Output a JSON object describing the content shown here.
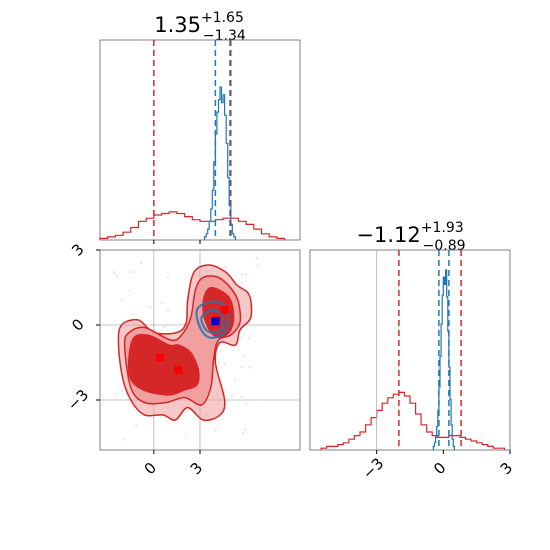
{
  "chart_data": [
    {
      "type": "histogram",
      "panel": "top-left",
      "title": {
        "main": "1.35",
        "sup": "+1.65",
        "sub": "−1.34"
      },
      "xlim": [
        -3.5,
        9.5
      ],
      "quantile_lines": {
        "red": [
          0.0,
          5.0
        ],
        "blue": [
          4.0,
          4.95
        ]
      },
      "series": [
        {
          "color": "#d62728",
          "bin_width": 0.5,
          "bins": [
            -3.25,
            -2.75,
            -2.25,
            -1.75,
            -1.25,
            -0.75,
            -0.25,
            0.25,
            0.75,
            1.25,
            1.75,
            2.25,
            2.75,
            3.25,
            3.75,
            4.25,
            4.75,
            5.25,
            5.75,
            6.25,
            6.75,
            7.25,
            7.75,
            8.25
          ],
          "heights": [
            0.01,
            0.02,
            0.03,
            0.05,
            0.08,
            0.12,
            0.14,
            0.16,
            0.17,
            0.18,
            0.17,
            0.15,
            0.13,
            0.12,
            0.12,
            0.13,
            0.14,
            0.14,
            0.12,
            0.1,
            0.07,
            0.04,
            0.02,
            0.01
          ]
        },
        {
          "color": "#1f77b4",
          "bin_width": 0.1,
          "bins": [
            3.35,
            3.45,
            3.55,
            3.65,
            3.75,
            3.85,
            3.95,
            4.05,
            4.15,
            4.25,
            4.35,
            4.45,
            4.55,
            4.65,
            4.75,
            4.85,
            4.95,
            5.05,
            5.15,
            5.25
          ],
          "heights": [
            0.02,
            0.04,
            0.07,
            0.12,
            0.2,
            0.32,
            0.5,
            0.68,
            0.82,
            0.9,
            0.98,
            0.88,
            0.93,
            0.8,
            0.62,
            0.4,
            0.22,
            0.1,
            0.04,
            0.02
          ]
        }
      ]
    },
    {
      "type": "histogram",
      "panel": "bottom-right",
      "title": {
        "main": "−1.12",
        "sup": "+1.93",
        "sub": "−0.89"
      },
      "xlim": [
        -6,
        3
      ],
      "xticks": [
        -3,
        0,
        3
      ],
      "xticklabels": [
        "−3",
        "0",
        "3"
      ],
      "quantile_lines": {
        "red": [
          -2.0,
          0.8
        ],
        "blue": [
          -0.2,
          0.25
        ]
      },
      "series": [
        {
          "color": "#d62728",
          "bin_width": 0.25,
          "bins": [
            -5.375,
            -5.125,
            -4.875,
            -4.625,
            -4.375,
            -4.125,
            -3.875,
            -3.625,
            -3.375,
            -3.125,
            -2.875,
            -2.625,
            -2.375,
            -2.125,
            -1.875,
            -1.625,
            -1.375,
            -1.125,
            -0.875,
            -0.625,
            -0.375,
            -0.125,
            0.125,
            0.375,
            0.625,
            0.875,
            1.125,
            1.375,
            1.625,
            1.875,
            2.125,
            2.375,
            2.625
          ],
          "heights": [
            0.01,
            0.02,
            0.02,
            0.03,
            0.04,
            0.06,
            0.08,
            0.1,
            0.14,
            0.18,
            0.22,
            0.26,
            0.29,
            0.31,
            0.32,
            0.3,
            0.26,
            0.2,
            0.14,
            0.1,
            0.08,
            0.07,
            0.07,
            0.08,
            0.08,
            0.07,
            0.06,
            0.05,
            0.04,
            0.03,
            0.02,
            0.01,
            0.01
          ]
        },
        {
          "color": "#1f77b4",
          "bin_width": 0.05,
          "bins": [
            -0.425,
            -0.375,
            -0.325,
            -0.275,
            -0.225,
            -0.175,
            -0.125,
            -0.075,
            -0.025,
            0.025,
            0.075,
            0.125,
            0.175,
            0.225,
            0.275,
            0.325,
            0.375,
            0.425,
            0.475
          ],
          "heights": [
            0.02,
            0.04,
            0.07,
            0.13,
            0.22,
            0.35,
            0.52,
            0.7,
            0.86,
            0.96,
            0.92,
            1.0,
            0.85,
            0.66,
            0.46,
            0.28,
            0.14,
            0.06,
            0.02
          ]
        }
      ]
    },
    {
      "type": "contour",
      "panel": "bottom-left",
      "xlim": [
        -3.5,
        9.5
      ],
      "ylim": [
        -5,
        3
      ],
      "xticks": [
        0,
        3
      ],
      "xticklabels": [
        "0",
        "3"
      ],
      "yticks": [
        -3,
        0,
        3
      ],
      "yticklabels": [
        "−3",
        "0",
        "3"
      ],
      "red_contours": {
        "outer": [
          [
            -2.3,
            -0.8
          ],
          [
            -2.1,
            0.0
          ],
          [
            -1.0,
            0.2
          ],
          [
            0.0,
            -0.3
          ],
          [
            1.5,
            -0.3
          ],
          [
            2.1,
            0.1
          ],
          [
            2.2,
            1.0
          ],
          [
            2.6,
            2.1
          ],
          [
            3.6,
            2.4
          ],
          [
            4.7,
            2.1
          ],
          [
            5.4,
            1.6
          ],
          [
            6.2,
            1.2
          ],
          [
            6.3,
            0.3
          ],
          [
            5.6,
            -0.2
          ],
          [
            5.3,
            -0.8
          ],
          [
            4.3,
            -0.7
          ],
          [
            4.0,
            -1.5
          ],
          [
            4.6,
            -3.0
          ],
          [
            4.3,
            -3.6
          ],
          [
            3.2,
            -3.8
          ],
          [
            2.2,
            -3.3
          ],
          [
            1.4,
            -3.8
          ],
          [
            0.6,
            -3.6
          ],
          [
            -0.6,
            -3.6
          ],
          [
            -1.4,
            -3.1
          ],
          [
            -2.0,
            -2.2
          ]
        ],
        "middle": [
          [
            -1.9,
            -0.8
          ],
          [
            -1.6,
            -0.3
          ],
          [
            -0.6,
            -0.1
          ],
          [
            1.1,
            -0.6
          ],
          [
            1.8,
            -0.4
          ],
          [
            2.4,
            0.3
          ],
          [
            2.7,
            1.4
          ],
          [
            3.2,
            1.9
          ],
          [
            4.2,
            1.9
          ],
          [
            5.1,
            1.4
          ],
          [
            5.5,
            0.9
          ],
          [
            5.6,
            0.1
          ],
          [
            5.0,
            -0.4
          ],
          [
            4.2,
            -0.6
          ],
          [
            3.9,
            -1.3
          ],
          [
            3.7,
            -2.5
          ],
          [
            3.1,
            -3.2
          ],
          [
            2.0,
            -2.9
          ],
          [
            0.8,
            -3.1
          ],
          [
            -0.6,
            -3.1
          ],
          [
            -1.5,
            -2.5
          ]
        ],
        "inner_top": [
          [
            3.8,
            1.5
          ],
          [
            4.9,
            1.1
          ],
          [
            5.2,
            0.3
          ],
          [
            4.9,
            -0.3
          ],
          [
            4.2,
            -0.5
          ],
          [
            3.6,
            -0.2
          ],
          [
            3.2,
            0.5
          ],
          [
            3.3,
            1.2
          ]
        ],
        "inner_bottom": [
          [
            -1.4,
            -0.6
          ],
          [
            -0.4,
            -0.4
          ],
          [
            1.0,
            -0.8
          ],
          [
            1.6,
            -0.8
          ],
          [
            2.4,
            -1.1
          ],
          [
            2.9,
            -1.8
          ],
          [
            2.8,
            -2.4
          ],
          [
            2.0,
            -2.6
          ],
          [
            1.0,
            -2.8
          ],
          [
            -0.7,
            -2.6
          ],
          [
            -1.6,
            -2.0
          ]
        ]
      },
      "blue_contours": [
        [
          [
            2.8,
            0.6
          ],
          [
            3.5,
            0.9
          ],
          [
            4.3,
            0.9
          ],
          [
            4.8,
            0.5
          ],
          [
            4.8,
            -0.1
          ],
          [
            4.4,
            -0.4
          ],
          [
            3.6,
            -0.5
          ],
          [
            3.0,
            -0.1
          ]
        ],
        [
          [
            3.1,
            0.3
          ],
          [
            3.8,
            0.6
          ],
          [
            4.4,
            0.4
          ],
          [
            4.5,
            -0.1
          ],
          [
            4.0,
            -0.3
          ],
          [
            3.4,
            -0.2
          ]
        ]
      ],
      "red_markers": [
        [
          0.4,
          -1.3
        ],
        [
          1.6,
          -1.8
        ],
        [
          4.1,
          0.2
        ],
        [
          4.6,
          0.6
        ]
      ],
      "blue_markers": [
        [
          4.0,
          0.15
        ]
      ]
    }
  ],
  "colors": {
    "red": "#d62728",
    "red_light": "#f09a9a",
    "red_fill": "#d62728",
    "blue": "#1f77b4",
    "blue_marker": "#0000cc",
    "axes": "#808080"
  }
}
